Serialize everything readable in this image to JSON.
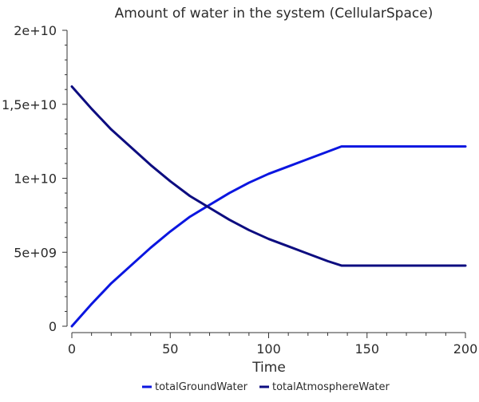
{
  "chart_data": {
    "type": "line",
    "title": "Amount of water in the system (CellularSpace)",
    "xlabel": "Time",
    "ylabel": "",
    "xlim": [
      0,
      200
    ],
    "ylim": [
      0,
      20000000000
    ],
    "x_ticks": [
      0,
      50,
      100,
      150,
      200
    ],
    "y_ticks": [
      0,
      5000000000,
      10000000000,
      15000000000,
      20000000000
    ],
    "y_tick_labels": [
      "0",
      "5e+09",
      "1e+10",
      "1,5e+10",
      "2e+10"
    ],
    "grid": false,
    "legend_position": "bottom",
    "series": [
      {
        "name": "totalGroundWater",
        "color": "#0b16e0",
        "x": [
          0,
          10,
          20,
          30,
          40,
          50,
          60,
          70,
          80,
          90,
          100,
          110,
          120,
          130,
          137,
          140,
          150,
          160,
          170,
          180,
          190,
          200
        ],
        "y": [
          0,
          1500000000,
          2900000000,
          4100000000,
          5300000000,
          6400000000,
          7400000000,
          8200000000,
          9000000000,
          9700000000,
          10300000000,
          10800000000,
          11300000000,
          11800000000,
          12150000000,
          12150000000,
          12150000000,
          12150000000,
          12150000000,
          12150000000,
          12150000000,
          12150000000
        ]
      },
      {
        "name": "totalAtmosphereWater",
        "color": "#0d0d80",
        "x": [
          0,
          10,
          20,
          30,
          40,
          50,
          60,
          70,
          80,
          90,
          100,
          110,
          120,
          130,
          137,
          140,
          150,
          160,
          170,
          180,
          190,
          200
        ],
        "y": [
          16200000000,
          14700000000,
          13300000000,
          12100000000,
          10900000000,
          9800000000,
          8800000000,
          8000000000,
          7200000000,
          6500000000,
          5900000000,
          5400000000,
          4900000000,
          4400000000,
          4100000000,
          4100000000,
          4100000000,
          4100000000,
          4100000000,
          4100000000,
          4100000000,
          4100000000
        ]
      }
    ]
  }
}
